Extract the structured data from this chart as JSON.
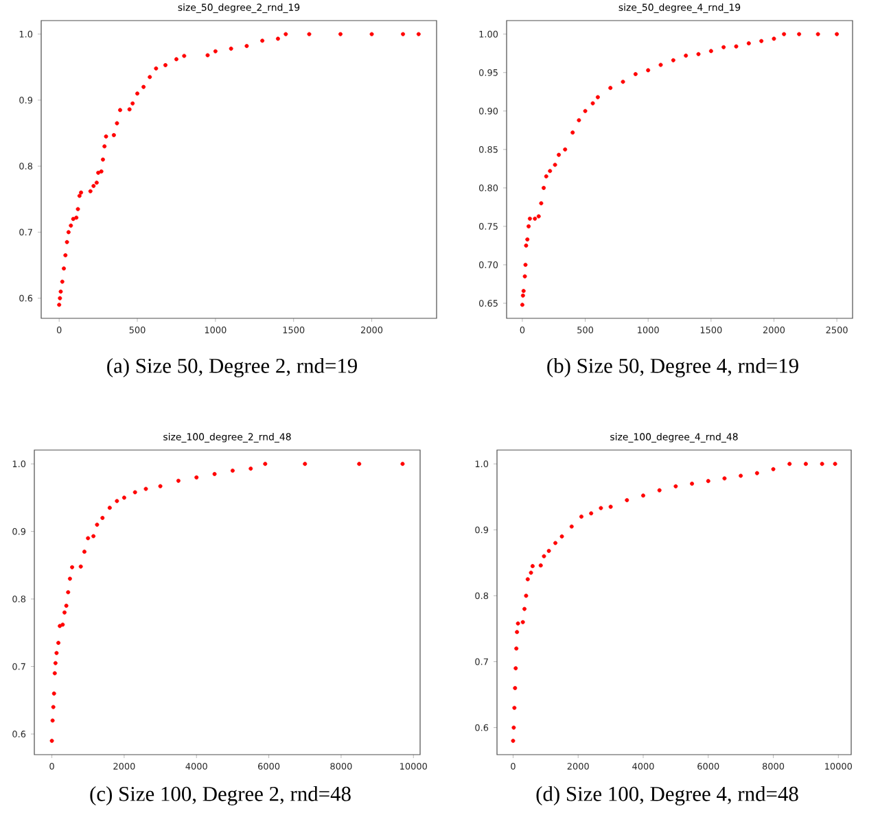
{
  "chart_data": [
    {
      "type": "scatter",
      "title": "size_50_degree_2_rnd_19",
      "annotations": [
        "(a)  Size 50, Degree 2, rnd=19"
      ],
      "marker": "circle",
      "xlim": [
        -115,
        2415
      ],
      "ylim": [
        0.5695,
        1.0205
      ],
      "xticks": [
        0,
        500,
        1000,
        1500,
        2000
      ],
      "yticks": [
        0.6,
        0.7,
        0.8,
        0.9,
        {
          "value": 1,
          "label": "1.0"
        }
      ],
      "series": [
        {
          "color": "#ff0000",
          "x": [
            0,
            5,
            10,
            20,
            30,
            40,
            50,
            60,
            75,
            90,
            110,
            120,
            130,
            140,
            200,
            220,
            240,
            250,
            270,
            280,
            290,
            300,
            350,
            370,
            390,
            450,
            470,
            500,
            540,
            580,
            620,
            680,
            750,
            800,
            950,
            1000,
            1100,
            1200,
            1300,
            1400,
            1450,
            1600,
            1800,
            2000,
            2200,
            2300
          ],
          "values": [
            0.59,
            0.6,
            0.61,
            0.625,
            0.645,
            0.665,
            0.685,
            0.7,
            0.71,
            0.72,
            0.722,
            0.735,
            0.755,
            0.76,
            0.762,
            0.77,
            0.775,
            0.79,
            0.792,
            0.81,
            0.83,
            0.845,
            0.847,
            0.865,
            0.885,
            0.886,
            0.895,
            0.91,
            0.92,
            0.935,
            0.948,
            0.953,
            0.962,
            0.967,
            0.968,
            0.974,
            0.978,
            0.982,
            0.99,
            0.993,
            1.0,
            1.0,
            1.0,
            1.0,
            1.0,
            1.0
          ]
        }
      ]
    },
    {
      "type": "scatter",
      "title": "size_50_degree_4_rnd_19",
      "annotations": [
        "(b)  Size 50, Degree 4, rnd=19"
      ],
      "marker": "circle",
      "xlim": [
        -125,
        2625
      ],
      "ylim": [
        0.6304,
        1.0176
      ],
      "xticks": [
        0,
        500,
        1000,
        1500,
        2000,
        2500
      ],
      "yticks": [
        0.65,
        {
          "value": 0.7,
          "label": "0.70"
        },
        0.75,
        {
          "value": 0.8,
          "label": "0.80"
        },
        0.85,
        {
          "value": 0.9,
          "label": "0.90"
        },
        0.95,
        {
          "value": 1,
          "label": "1.00"
        }
      ],
      "series": [
        {
          "color": "#ff0000",
          "x": [
            0,
            5,
            10,
            20,
            25,
            30,
            40,
            50,
            60,
            100,
            130,
            150,
            170,
            190,
            220,
            260,
            290,
            340,
            400,
            450,
            500,
            560,
            600,
            700,
            800,
            900,
            1000,
            1100,
            1200,
            1300,
            1400,
            1500,
            1600,
            1700,
            1800,
            1900,
            2000,
            2080,
            2200,
            2350,
            2500
          ],
          "values": [
            0.648,
            0.66,
            0.666,
            0.685,
            0.7,
            0.725,
            0.733,
            0.75,
            0.76,
            0.76,
            0.763,
            0.78,
            0.8,
            0.815,
            0.822,
            0.83,
            0.843,
            0.85,
            0.872,
            0.888,
            0.9,
            0.91,
            0.918,
            0.93,
            0.938,
            0.948,
            0.953,
            0.96,
            0.966,
            0.972,
            0.974,
            0.978,
            0.983,
            0.984,
            0.988,
            0.991,
            0.994,
            1.0,
            1.0,
            1.0,
            1.0
          ]
        }
      ]
    },
    {
      "type": "scatter",
      "title": "size_100_degree_2_rnd_48",
      "annotations": [
        "(c)  Size 100, Degree 2, rnd=48"
      ],
      "marker": "circle",
      "xlim": [
        -485,
        10185
      ],
      "ylim": [
        0.5695,
        1.0205
      ],
      "xticks": [
        0,
        2000,
        4000,
        6000,
        8000,
        10000
      ],
      "yticks": [
        0.6,
        0.7,
        0.8,
        0.9,
        {
          "value": 1,
          "label": "1.0"
        }
      ],
      "series": [
        {
          "color": "#ff0000",
          "x": [
            0,
            20,
            40,
            60,
            80,
            100,
            130,
            180,
            220,
            300,
            350,
            400,
            450,
            500,
            560,
            800,
            900,
            1000,
            1150,
            1250,
            1400,
            1600,
            1800,
            2000,
            2300,
            2600,
            3000,
            3500,
            4000,
            4500,
            5000,
            5500,
            5900,
            7000,
            8500,
            9700
          ],
          "values": [
            0.59,
            0.62,
            0.64,
            0.66,
            0.69,
            0.705,
            0.72,
            0.735,
            0.76,
            0.762,
            0.78,
            0.79,
            0.81,
            0.83,
            0.847,
            0.848,
            0.87,
            0.89,
            0.893,
            0.91,
            0.92,
            0.935,
            0.945,
            0.95,
            0.958,
            0.963,
            0.967,
            0.975,
            0.98,
            0.985,
            0.99,
            0.993,
            1.0,
            1.0,
            1.0,
            1.0
          ]
        }
      ]
    },
    {
      "type": "scatter",
      "title": "size_100_degree_4_rnd_48",
      "annotations": [
        "(d)  Size 100, Degree 4, rnd=48"
      ],
      "marker": "circle",
      "xlim": [
        -495,
        10395
      ],
      "ylim": [
        0.559,
        1.021
      ],
      "xticks": [
        0,
        2000,
        4000,
        6000,
        8000,
        10000
      ],
      "yticks": [
        0.6,
        0.7,
        0.8,
        0.9,
        {
          "value": 1,
          "label": "1.0"
        }
      ],
      "series": [
        {
          "color": "#ff0000",
          "x": [
            0,
            20,
            40,
            60,
            80,
            100,
            120,
            150,
            300,
            350,
            400,
            450,
            550,
            600,
            850,
            950,
            1100,
            1300,
            1500,
            1800,
            2100,
            2400,
            2700,
            3000,
            3500,
            4000,
            4500,
            5000,
            5500,
            6000,
            6500,
            7000,
            7500,
            8000,
            8500,
            9000,
            9500,
            9900
          ],
          "values": [
            0.58,
            0.6,
            0.63,
            0.66,
            0.69,
            0.72,
            0.745,
            0.758,
            0.76,
            0.78,
            0.8,
            0.825,
            0.835,
            0.845,
            0.846,
            0.86,
            0.868,
            0.88,
            0.89,
            0.905,
            0.92,
            0.925,
            0.933,
            0.935,
            0.945,
            0.952,
            0.96,
            0.966,
            0.97,
            0.974,
            0.978,
            0.982,
            0.986,
            0.992,
            1.0,
            1.0,
            1.0,
            1.0
          ]
        }
      ]
    }
  ]
}
